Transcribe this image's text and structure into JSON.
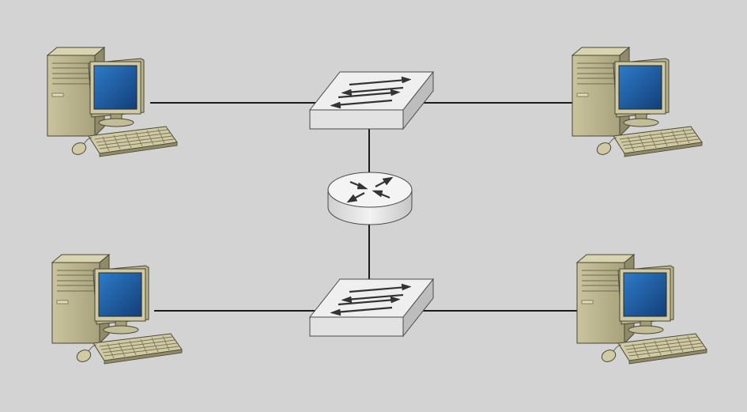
{
  "diagram": {
    "background": "#d3d3d3",
    "line_color": "#1a1a1a",
    "nodes": [
      {
        "id": "pc-top-left",
        "icon": "desktop-computer-icon"
      },
      {
        "id": "pc-top-right",
        "icon": "desktop-computer-icon"
      },
      {
        "id": "pc-bottom-left",
        "icon": "desktop-computer-icon"
      },
      {
        "id": "pc-bottom-right",
        "icon": "desktop-computer-icon"
      },
      {
        "id": "switch-top",
        "icon": "network-switch-icon"
      },
      {
        "id": "switch-bottom",
        "icon": "network-switch-icon"
      },
      {
        "id": "router",
        "icon": "router-icon"
      }
    ],
    "links": [
      {
        "from": "pc-top-left",
        "to": "switch-top"
      },
      {
        "from": "switch-top",
        "to": "pc-top-right"
      },
      {
        "from": "switch-top",
        "to": "router"
      },
      {
        "from": "router",
        "to": "switch-bottom"
      },
      {
        "from": "pc-bottom-left",
        "to": "switch-bottom"
      },
      {
        "from": "switch-bottom",
        "to": "pc-bottom-right"
      }
    ],
    "colors": {
      "pc_case": "#b9b48e",
      "pc_case_shade": "#8f8a68",
      "monitor_screen": "#1e5a9e",
      "switch_body": "#eeeeee",
      "router_body": "#e8e8e8",
      "arrow": "#333333"
    }
  }
}
